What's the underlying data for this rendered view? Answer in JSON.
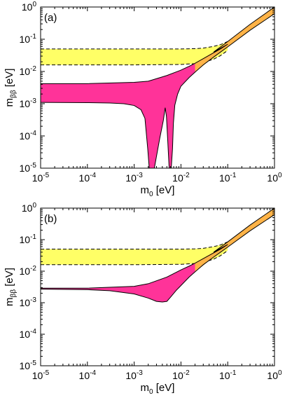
{
  "chart_data": [
    {
      "type": "area",
      "panel_label": "(a)",
      "xlabel": {
        "base": "m",
        "sub": "0",
        "unit": "[eV]"
      },
      "ylabel": {
        "base": "m",
        "sub": "ββ",
        "unit": "[eV]"
      },
      "xscale": "log",
      "yscale": "log",
      "xlim": [
        1e-05,
        1
      ],
      "ylim": [
        1e-05,
        1
      ],
      "x_ticks": [
        {
          "base": "10",
          "exp": "-5",
          "v": 1e-05
        },
        {
          "base": "10",
          "exp": "-4",
          "v": 0.0001
        },
        {
          "base": "10",
          "exp": "-3",
          "v": 0.001
        },
        {
          "base": "10",
          "exp": "-2",
          "v": 0.01
        },
        {
          "base": "10",
          "exp": "-1",
          "v": 0.1
        },
        {
          "base": "10",
          "exp": "0",
          "v": 1
        }
      ],
      "y_ticks": [
        {
          "base": "10",
          "exp": "-5",
          "v": 1e-05
        },
        {
          "base": "10",
          "exp": "-4",
          "v": 0.0001
        },
        {
          "base": "10",
          "exp": "-3",
          "v": 0.001
        },
        {
          "base": "10",
          "exp": "-2",
          "v": 0.01
        },
        {
          "base": "10",
          "exp": "-1",
          "v": 0.1
        },
        {
          "base": "10",
          "exp": "0",
          "v": 1
        }
      ],
      "colors": {
        "magenta": "#ff3399",
        "yellow": "#ffff66",
        "orange": "#ffb347"
      },
      "yellow_band": {
        "x": [
          1e-05,
          0.001,
          0.01,
          0.02,
          0.03,
          0.05,
          0.07,
          0.1
        ],
        "lower": [
          0.016,
          0.016,
          0.0165,
          0.0175,
          0.019,
          0.024,
          0.031,
          0.045
        ],
        "upper": [
          0.05,
          0.05,
          0.05,
          0.051,
          0.053,
          0.06,
          0.068,
          0.085
        ]
      },
      "magenta_band": {
        "upper": {
          "x": [
            1e-05,
            0.0001,
            0.001,
            0.002,
            0.005,
            0.01,
            0.015,
            0.02,
            0.03,
            0.05,
            0.07,
            0.1
          ],
          "y": [
            0.0042,
            0.0042,
            0.0046,
            0.005,
            0.0075,
            0.011,
            0.0145,
            0.018,
            0.025,
            0.038,
            0.05,
            0.07
          ]
        },
        "lower": {
          "x": [
            1e-05,
            0.0001,
            0.0003,
            0.0006,
            0.001,
            0.0014,
            0.0017,
            0.00195,
            0.0021,
            0.0027,
            0.0035,
            0.0042,
            0.0046,
            0.0049,
            0.0052,
            0.0056,
            0.0062,
            0.0066,
            0.0069,
            0.0074,
            0.0085,
            0.01,
            0.015,
            0.02,
            0.03,
            0.05,
            0.07,
            0.1
          ],
          "y": [
            0.0011,
            0.00108,
            0.00105,
            0.001,
            0.00088,
            0.00065,
            0.00035,
            4e-05,
            1e-05,
            1e-05,
            8e-05,
            0.0003,
            0.00075,
            0.0004,
            8e-05,
            1e-05,
            1e-05,
            4e-05,
            0.00025,
            0.0009,
            0.002,
            0.0035,
            0.0065,
            0.0095,
            0.016,
            0.028,
            0.04,
            0.058
          ]
        }
      },
      "orange_band": {
        "x": [
          0.02,
          0.05,
          0.1,
          0.3,
          1
        ],
        "lower": [
          0.0095,
          0.028,
          0.058,
          0.19,
          0.62
        ],
        "upper": [
          0.018,
          0.04,
          0.085,
          0.29,
          1.0
        ]
      }
    },
    {
      "type": "area",
      "panel_label": "(b)",
      "xlabel": {
        "base": "m",
        "sub": "0",
        "unit": "[eV]"
      },
      "ylabel": {
        "base": "m",
        "sub": "ββ",
        "unit": "[eV]"
      },
      "xscale": "log",
      "yscale": "log",
      "xlim": [
        1e-05,
        1
      ],
      "ylim": [
        1e-05,
        1
      ],
      "x_ticks": [
        {
          "base": "10",
          "exp": "-5",
          "v": 1e-05
        },
        {
          "base": "10",
          "exp": "-4",
          "v": 0.0001
        },
        {
          "base": "10",
          "exp": "-3",
          "v": 0.001
        },
        {
          "base": "10",
          "exp": "-2",
          "v": 0.01
        },
        {
          "base": "10",
          "exp": "-1",
          "v": 0.1
        },
        {
          "base": "10",
          "exp": "0",
          "v": 1
        }
      ],
      "y_ticks": [
        {
          "base": "10",
          "exp": "-5",
          "v": 1e-05
        },
        {
          "base": "10",
          "exp": "-4",
          "v": 0.0001
        },
        {
          "base": "10",
          "exp": "-3",
          "v": 0.001
        },
        {
          "base": "10",
          "exp": "-2",
          "v": 0.01
        },
        {
          "base": "10",
          "exp": "-1",
          "v": 0.1
        },
        {
          "base": "10",
          "exp": "0",
          "v": 1
        }
      ],
      "colors": {
        "magenta": "#ff3399",
        "yellow": "#ffff66",
        "orange": "#ffb347"
      },
      "yellow_band": {
        "x": [
          1e-05,
          0.001,
          0.01,
          0.02,
          0.03,
          0.05,
          0.07,
          0.1
        ],
        "lower": [
          0.016,
          0.016,
          0.0165,
          0.0175,
          0.019,
          0.024,
          0.031,
          0.045
        ],
        "upper": [
          0.05,
          0.05,
          0.05,
          0.051,
          0.053,
          0.06,
          0.068,
          0.085
        ]
      },
      "magenta_band": {
        "upper": {
          "x": [
            1e-05,
            0.0001,
            0.001,
            0.002,
            0.005,
            0.01,
            0.015,
            0.02,
            0.03,
            0.05,
            0.07,
            0.1
          ],
          "y": [
            0.0029,
            0.0029,
            0.0033,
            0.004,
            0.0065,
            0.011,
            0.0145,
            0.018,
            0.025,
            0.038,
            0.05,
            0.07
          ]
        },
        "lower": {
          "x": [
            1e-05,
            0.0001,
            0.0003,
            0.001,
            0.002,
            0.003,
            0.004,
            0.005,
            0.006,
            0.008,
            0.01,
            0.015,
            0.02,
            0.03,
            0.05,
            0.07,
            0.1
          ],
          "y": [
            0.0027,
            0.0026,
            0.0024,
            0.0019,
            0.0014,
            0.0011,
            0.00105,
            0.0011,
            0.0015,
            0.0025,
            0.0035,
            0.0065,
            0.0095,
            0.016,
            0.028,
            0.04,
            0.058
          ]
        }
      },
      "orange_band": {
        "x": [
          0.02,
          0.05,
          0.1,
          0.3,
          1
        ],
        "lower": [
          0.0095,
          0.028,
          0.058,
          0.19,
          0.62
        ],
        "upper": [
          0.018,
          0.04,
          0.085,
          0.29,
          1.0
        ]
      }
    }
  ]
}
